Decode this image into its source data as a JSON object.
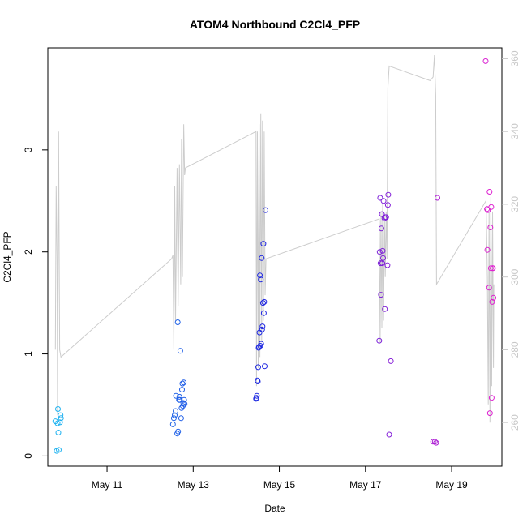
{
  "chart_data": {
    "type": "scatter",
    "title": "ATOM4 Northbound C2Cl4_PFP",
    "xlabel": "Date",
    "ylabel": "C2Cl4_PFP",
    "x_ticks": [
      "May 11",
      "May 13",
      "May 15",
      "May 17",
      "May 19"
    ],
    "y_ticks": [
      "0",
      "1",
      "2",
      "3"
    ],
    "y2_ticks": [
      "260",
      "280",
      "300",
      "320",
      "340",
      "360"
    ],
    "xlim": [
      "May 9 15:00",
      "May 20 04:00"
    ],
    "ylim": [
      -0.1,
      4.0
    ],
    "y2lim": [
      248,
      363
    ],
    "grid": false,
    "colors": {
      "line": "#cccccc",
      "axis": "#000000",
      "right_axis": "#c8c8c8",
      "points_start": "#1fb4f0",
      "points_mid": "#1f1fe0",
      "points_end": "#e01fd0"
    },
    "series": [
      {
        "type": "scatter",
        "points": [
          [
            "May 9 19:12",
            0.34
          ],
          [
            "May 9 19:55",
            0.05
          ],
          [
            "May 9 20:24",
            0.32
          ],
          [
            "May 9 20:38",
            0.46
          ],
          [
            "May 9 20:53",
            0.23
          ],
          [
            "May 9 21:07",
            0.06
          ],
          [
            "May 9 21:50",
            0.33
          ],
          [
            "May 9 22:05",
            0.4
          ],
          [
            "May 9 22:19",
            0.37
          ],
          [
            "May 12 12:43",
            0.31
          ],
          [
            "May 12 13:12",
            0.37
          ],
          [
            "May 12 13:41",
            0.4
          ],
          [
            "May 12 14:10",
            0.44
          ],
          [
            "May 12 14:24",
            0.59
          ],
          [
            "May 12 15:07",
            0.22
          ],
          [
            "May 12 15:36",
            0.24
          ],
          [
            "May 12 15:22",
            1.31
          ],
          [
            "May 12 16:05",
            0.55
          ],
          [
            "May 12 16:19",
            0.58
          ],
          [
            "May 12 16:34",
            0.55
          ],
          [
            "May 12 16:48",
            1.03
          ],
          [
            "May 12 17:17",
            0.37
          ],
          [
            "May 12 17:31",
            0.47
          ],
          [
            "May 12 17:46",
            0.65
          ],
          [
            "May 12 18:00",
            0.71
          ],
          [
            "May 12 18:14",
            0.49
          ],
          [
            "May 12 18:29",
            0.52
          ],
          [
            "May 12 18:43",
            0.72
          ],
          [
            "May 12 18:58",
            0.55
          ],
          [
            "May 12 19:12",
            0.51
          ],
          [
            "May 14 11:02",
            0.56
          ],
          [
            "May 14 11:17",
            0.57
          ],
          [
            "May 14 11:31",
            0.59
          ],
          [
            "May 14 11:46",
            0.74
          ],
          [
            "May 14 12:00",
            0.73
          ],
          [
            "May 14 12:14",
            0.87
          ],
          [
            "May 14 12:29",
            1.06
          ],
          [
            "May 14 12:43",
            1.07
          ],
          [
            "May 14 12:58",
            1.21
          ],
          [
            "May 14 13:12",
            1.77
          ],
          [
            "May 14 13:26",
            1.08
          ],
          [
            "May 14 13:41",
            1.73
          ],
          [
            "May 14 13:55",
            1.1
          ],
          [
            "May 14 14:10",
            1.94
          ],
          [
            "May 14 14:24",
            1.24
          ],
          [
            "May 14 14:38",
            1.27
          ],
          [
            "May 14 14:53",
            1.5
          ],
          [
            "May 14 15:07",
            2.08
          ],
          [
            "May 14 15:22",
            1.4
          ],
          [
            "May 14 15:36",
            1.51
          ],
          [
            "May 14 15:50",
            0.88
          ],
          [
            "May 14 16:19",
            2.41
          ],
          [
            "May 17 07:41",
            1.13
          ],
          [
            "May 17 07:55",
            2.0
          ],
          [
            "May 17 08:10",
            2.53
          ],
          [
            "May 17 08:24",
            1.89
          ],
          [
            "May 17 08:38",
            1.58
          ],
          [
            "May 17 08:53",
            2.23
          ],
          [
            "May 17 09:07",
            2.37
          ],
          [
            "May 17 09:22",
            1.89
          ],
          [
            "May 17 09:36",
            2.01
          ],
          [
            "May 17 09:50",
            1.94
          ],
          [
            "May 17 10:05",
            2.5
          ],
          [
            "May 17 10:34",
            2.33
          ],
          [
            "May 17 10:48",
            1.44
          ],
          [
            "May 17 11:02",
            2.34
          ],
          [
            "May 17 11:31",
            2.34
          ],
          [
            "May 17 12:14",
            1.87
          ],
          [
            "May 17 12:29",
            2.46
          ],
          [
            "May 17 12:43",
            2.56
          ],
          [
            "May 17 13:12",
            0.21
          ],
          [
            "May 17 14:10",
            0.93
          ],
          [
            "May 18 13:41",
            0.14
          ],
          [
            "May 18 14:38",
            0.14
          ],
          [
            "May 18 15:22",
            0.13
          ],
          [
            "May 18 16:05",
            2.53
          ],
          [
            "May 19 18:58",
            3.87
          ],
          [
            "May 19 19:41",
            2.42
          ],
          [
            "May 19 19:55",
            2.02
          ],
          [
            "May 19 20:10",
            2.41
          ],
          [
            "May 19 20:53",
            1.65
          ],
          [
            "May 19 21:07",
            2.59
          ],
          [
            "May 19 21:22",
            0.42
          ],
          [
            "May 19 21:36",
            2.24
          ],
          [
            "May 19 21:50",
            1.84
          ],
          [
            "May 19 22:05",
            2.44
          ],
          [
            "May 19 22:19",
            0.57
          ],
          [
            "May 19 22:34",
            1.51
          ],
          [
            "May 19 22:48",
            1.84
          ],
          [
            "May 19 23:02",
            1.84
          ],
          [
            "May 19 23:17",
            1.55
          ]
        ]
      },
      {
        "type": "line",
        "axis": "right",
        "points": [
          [
            "May 9 19:12",
            280
          ],
          [
            "May 9 19:40",
            325
          ],
          [
            "May 9 20:10",
            305
          ],
          [
            "May 9 20:24",
            262
          ],
          [
            "May 9 21:00",
            340
          ],
          [
            "May 9 21:36",
            280
          ],
          [
            "May 9 22:19",
            278
          ],
          [
            "May 12 12:00",
            305
          ],
          [
            "May 12 12:43",
            306
          ],
          [
            "May 12 13:12",
            280
          ],
          [
            "May 12 13:41",
            325
          ],
          [
            "May 12 14:10",
            288
          ],
          [
            "May 12 15:00",
            330
          ],
          [
            "May 12 15:36",
            292
          ],
          [
            "May 12 16:19",
            331
          ],
          [
            "May 12 17:02",
            298
          ],
          [
            "May 12 17:31",
            338
          ],
          [
            "May 12 18:00",
            300
          ],
          [
            "May 12 18:43",
            342
          ],
          [
            "May 12 19:12",
            328
          ],
          [
            "May 12 19:40",
            330
          ],
          [
            "May 14 11:00",
            340
          ],
          [
            "May 14 11:17",
            270
          ],
          [
            "May 14 11:46",
            340
          ],
          [
            "May 14 12:14",
            275
          ],
          [
            "May 14 12:43",
            342
          ],
          [
            "May 14 13:12",
            278
          ],
          [
            "May 14 13:41",
            345
          ],
          [
            "May 14 14:10",
            282
          ],
          [
            "May 14 14:38",
            343
          ],
          [
            "May 14 15:07",
            288
          ],
          [
            "May 14 15:36",
            340
          ],
          [
            "May 14 16:05",
            295
          ],
          [
            "May 14 16:34",
            305
          ],
          [
            "May 17 07:41",
            316
          ],
          [
            "May 17 08:10",
            282
          ],
          [
            "May 17 08:38",
            318
          ],
          [
            "May 17 09:07",
            286
          ],
          [
            "May 17 09:36",
            320
          ],
          [
            "May 17 10:05",
            288
          ],
          [
            "May 17 10:34",
            317
          ],
          [
            "May 17 11:02",
            300
          ],
          [
            "May 17 11:31",
            318
          ],
          [
            "May 17 12:00",
            305
          ],
          [
            "May 17 12:29",
            352
          ],
          [
            "May 17 13:12",
            358
          ],
          [
            "May 18 12:00",
            354
          ],
          [
            "May 18 13:41",
            355
          ],
          [
            "May 18 14:24",
            361
          ],
          [
            "May 18 15:07",
            350
          ],
          [
            "May 18 15:36",
            298
          ],
          [
            "May 19 19:12",
            321
          ],
          [
            "May 19 19:55",
            300
          ],
          [
            "May 19 20:24",
            265
          ],
          [
            "May 19 20:53",
            318
          ],
          [
            "May 19 21:22",
            260
          ],
          [
            "May 19 21:50",
            322
          ],
          [
            "May 19 22:19",
            270
          ],
          [
            "May 19 22:48",
            318
          ],
          [
            "May 19 23:17",
            275
          ],
          [
            "May 19 23:31",
            298
          ]
        ]
      }
    ]
  }
}
